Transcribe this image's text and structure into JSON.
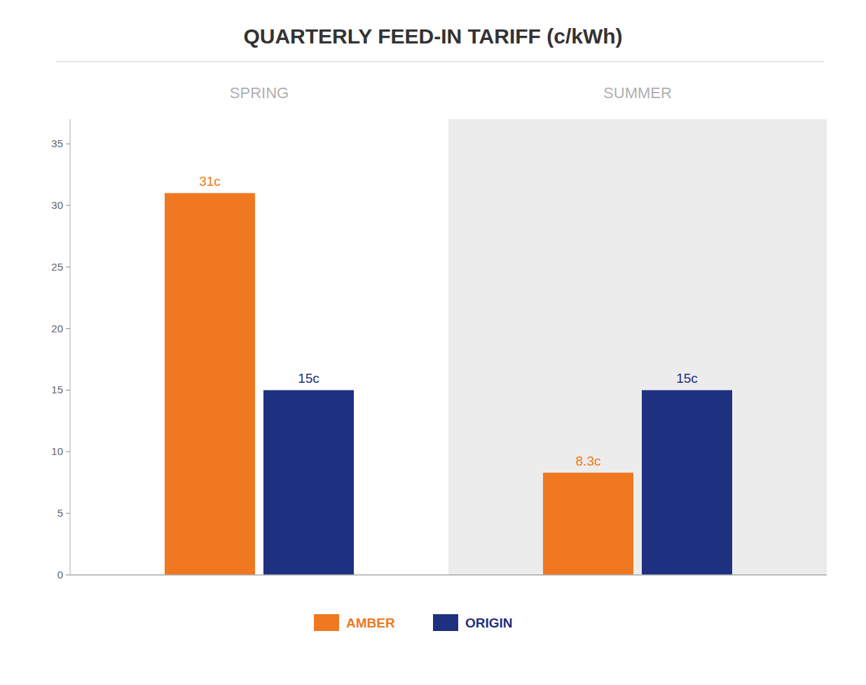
{
  "chart_data": {
    "type": "bar",
    "title": "QUARTERLY FEED-IN TARIFF (c/kWh)",
    "categories": [
      "SPRING",
      "SUMMER"
    ],
    "series": [
      {
        "name": "AMBER",
        "color": "#f07820",
        "values": [
          31,
          8.3
        ],
        "value_labels": [
          "31c",
          "8.3c"
        ]
      },
      {
        "name": "ORIGIN",
        "color": "#1e3080",
        "values": [
          15,
          15
        ],
        "value_labels": [
          "15c",
          "15c"
        ]
      }
    ],
    "ylim": [
      0,
      37
    ],
    "yticks": [
      0,
      5,
      10,
      15,
      20,
      25,
      30,
      35
    ],
    "data_labels": true,
    "legend": "bottom",
    "grid": false
  }
}
